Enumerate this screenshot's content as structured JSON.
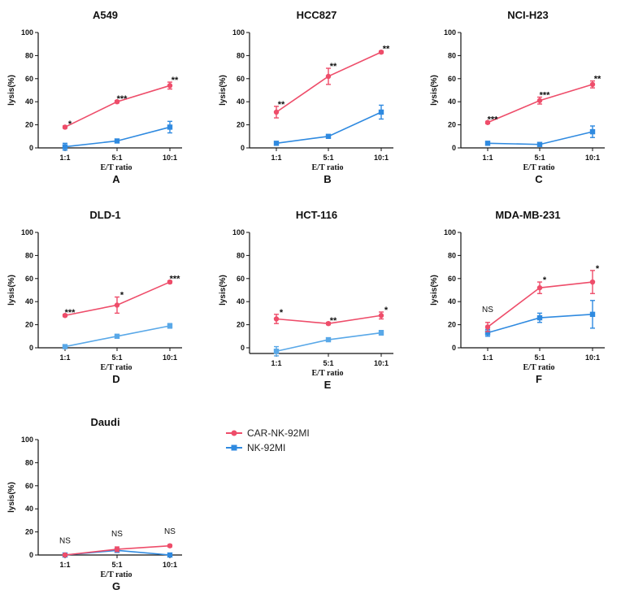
{
  "colors": {
    "car": "#ee4d6a",
    "nk": "#2f8ae0",
    "nk_light": "#59a8e8",
    "axis": "#111111"
  },
  "legend": {
    "items": [
      {
        "label": "CAR-NK-92MI",
        "color": "#ee4d6a",
        "marker": "circle"
      },
      {
        "label": "NK-92MI",
        "color": "#2f8ae0",
        "marker": "square"
      }
    ]
  },
  "chart_data": [
    {
      "type": "line",
      "title": "A549",
      "letter": "A",
      "xlabel": "E/T ratio",
      "ylabel": "lysis(%)",
      "categories": [
        "1:1",
        "5:1",
        "10:1"
      ],
      "ylim": [
        0,
        100
      ],
      "yticks": [
        0,
        20,
        40,
        60,
        80,
        100
      ],
      "series": [
        {
          "name": "CAR-NK-92MI",
          "values": [
            18,
            40,
            54
          ],
          "errors": [
            1,
            1,
            3
          ]
        },
        {
          "name": "NK-92MI",
          "values": [
            1,
            6,
            18
          ],
          "errors": [
            3,
            1,
            5
          ]
        }
      ],
      "significance": [
        "*",
        "***",
        "**"
      ]
    },
    {
      "type": "line",
      "title": "HCC827",
      "letter": "B",
      "xlabel": "E/T ratio",
      "ylabel": "lysis(%)",
      "categories": [
        "1:1",
        "5:1",
        "10:1"
      ],
      "ylim": [
        0,
        100
      ],
      "yticks": [
        0,
        20,
        40,
        60,
        80,
        100
      ],
      "series": [
        {
          "name": "CAR-NK-92MI",
          "values": [
            31,
            62,
            83
          ],
          "errors": [
            5,
            7,
            1
          ]
        },
        {
          "name": "NK-92MI",
          "values": [
            4,
            10,
            31
          ],
          "errors": [
            1,
            1,
            6
          ]
        }
      ],
      "significance": [
        "**",
        "**",
        "**"
      ]
    },
    {
      "type": "line",
      "title": "NCI-H23",
      "letter": "C",
      "xlabel": "E/T ratio",
      "ylabel": "lysis(%)",
      "categories": [
        "1:1",
        "5:1",
        "10:1"
      ],
      "ylim": [
        0,
        100
      ],
      "yticks": [
        0,
        20,
        40,
        60,
        80,
        100
      ],
      "series": [
        {
          "name": "CAR-NK-92MI",
          "values": [
            22,
            41,
            55
          ],
          "errors": [
            1,
            3,
            3
          ]
        },
        {
          "name": "NK-92MI",
          "values": [
            4,
            3,
            14
          ],
          "errors": [
            1,
            1,
            5
          ]
        }
      ],
      "significance": [
        "***",
        "***",
        "**"
      ]
    },
    {
      "type": "line",
      "title": "DLD-1",
      "letter": "D",
      "xlabel": "E/T ratio",
      "ylabel": "lysis(%)",
      "categories": [
        "1:1",
        "5:1",
        "10:1"
      ],
      "ylim": [
        0,
        100
      ],
      "yticks": [
        0,
        20,
        40,
        60,
        80,
        100
      ],
      "series": [
        {
          "name": "CAR-NK-92MI",
          "values": [
            28,
            37,
            57
          ],
          "errors": [
            1,
            7,
            1
          ]
        },
        {
          "name": "NK-92MI",
          "values": [
            1,
            10,
            19
          ],
          "errors": [
            1,
            1,
            2
          ]
        }
      ],
      "significance": [
        "***",
        "*",
        "***"
      ]
    },
    {
      "type": "line",
      "title": "HCT-116",
      "letter": "E",
      "xlabel": "E/T ratio",
      "ylabel": "lysis(%)",
      "categories": [
        "1:1",
        "5:1",
        "10:1"
      ],
      "ylim": [
        0,
        100
      ],
      "yticks": [
        0,
        20,
        40,
        60,
        80,
        100
      ],
      "series": [
        {
          "name": "CAR-NK-92MI",
          "values": [
            25,
            21,
            28
          ],
          "errors": [
            4,
            1,
            3
          ]
        },
        {
          "name": "NK-92MI",
          "values": [
            -3,
            7,
            13
          ],
          "errors": [
            4,
            1,
            2
          ]
        }
      ],
      "significance": [
        "*",
        "**",
        "*"
      ]
    },
    {
      "type": "line",
      "title": "MDA-MB-231",
      "letter": "F",
      "xlabel": "E/T ratio",
      "ylabel": "lysis(%)",
      "categories": [
        "1:1",
        "5:1",
        "10:1"
      ],
      "ylim": [
        0,
        100
      ],
      "yticks": [
        0,
        20,
        40,
        60,
        80,
        100
      ],
      "series": [
        {
          "name": "CAR-NK-92MI",
          "values": [
            18,
            52,
            57
          ],
          "errors": [
            4,
            5,
            10
          ]
        },
        {
          "name": "NK-92MI",
          "values": [
            13,
            26,
            29
          ],
          "errors": [
            3,
            4,
            12
          ]
        }
      ],
      "significance": [
        "NS",
        "*",
        "*"
      ]
    },
    {
      "type": "line",
      "title": "Daudi",
      "letter": "G",
      "xlabel": "E/T ratio",
      "ylabel": "lysis(%)",
      "categories": [
        "1:1",
        "5:1",
        "10:1"
      ],
      "ylim": [
        0,
        100
      ],
      "yticks": [
        0,
        20,
        40,
        60,
        80,
        100
      ],
      "series": [
        {
          "name": "CAR-NK-92MI",
          "values": [
            0,
            5,
            8
          ],
          "errors": [
            1,
            2,
            1
          ]
        },
        {
          "name": "NK-92MI",
          "values": [
            0,
            4,
            0
          ],
          "errors": [
            1,
            1,
            0
          ]
        }
      ],
      "significance": [
        "NS",
        "NS",
        "NS"
      ]
    }
  ]
}
